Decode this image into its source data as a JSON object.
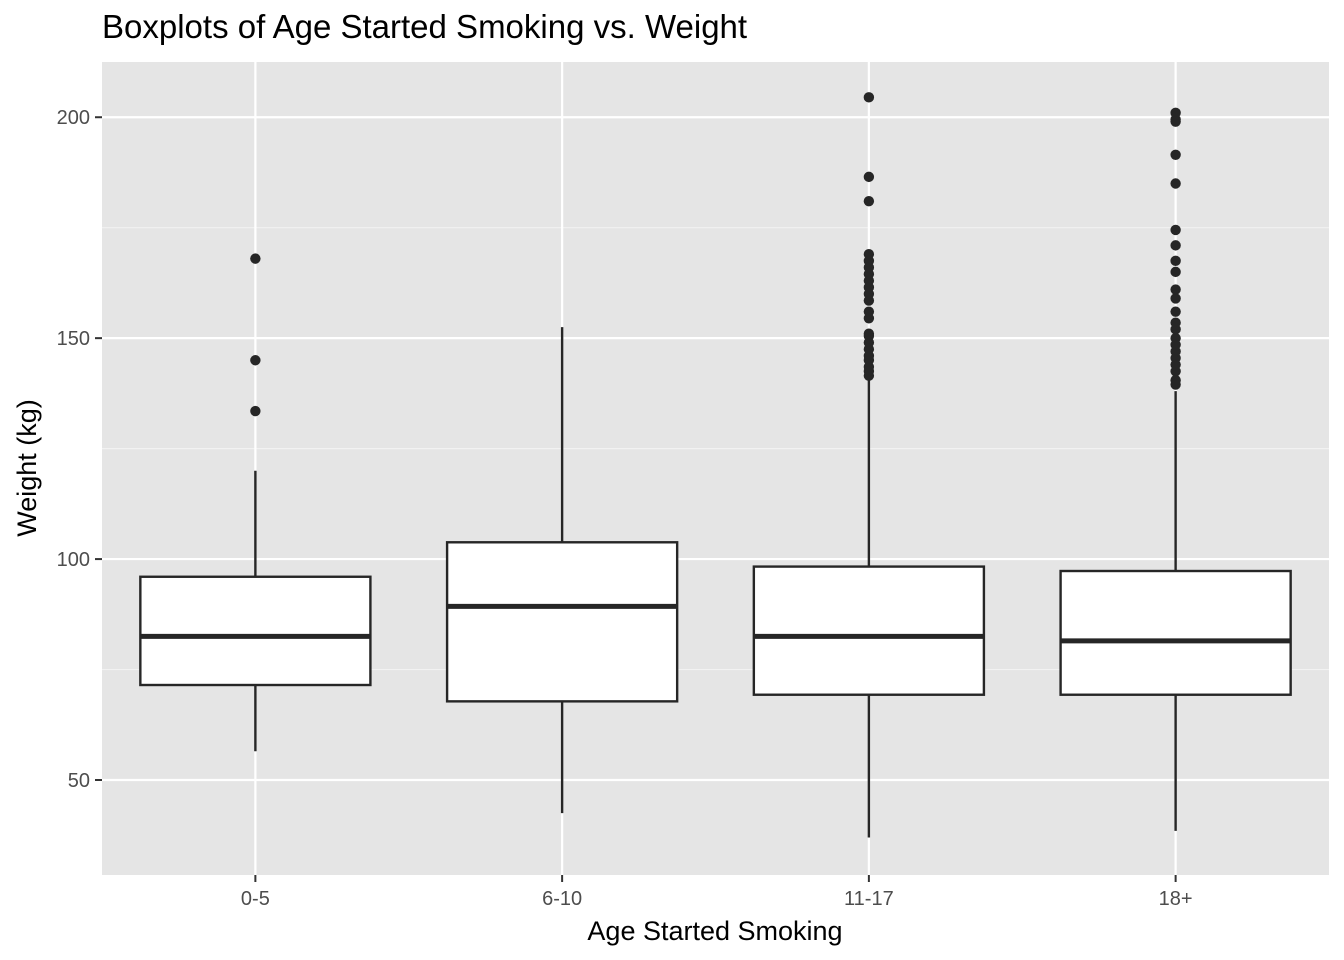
{
  "chart_data": {
    "type": "boxplot",
    "title": "Boxplots of Age Started Smoking vs. Weight",
    "xlabel": "Age Started Smoking",
    "ylabel": "Weight (kg)",
    "ylim": [
      28.5,
      212.5
    ],
    "yticks": [
      50,
      100,
      150,
      200
    ],
    "grid": true,
    "categories": [
      "0-5",
      "6-10",
      "11-17",
      "18+"
    ],
    "boxes": [
      {
        "category": "0-5",
        "whisker_low": 56.5,
        "q1": 71.5,
        "median": 82.5,
        "q3": 96.0,
        "whisker_high": 120.0,
        "outliers": [
          133.5,
          145.0,
          168.0
        ]
      },
      {
        "category": "6-10",
        "whisker_low": 42.5,
        "q1": 67.8,
        "median": 89.3,
        "q3": 103.8,
        "whisker_high": 152.5,
        "outliers": []
      },
      {
        "category": "11-17",
        "whisker_low": 37.0,
        "q1": 69.3,
        "median": 82.5,
        "q3": 98.3,
        "whisker_high": 141.0,
        "outliers": [
          141.5,
          142.5,
          143.5,
          145.0,
          146.0,
          147.5,
          149.0,
          150.5,
          151.0,
          154.5,
          156.0,
          158.5,
          160.0,
          161.5,
          163.0,
          164.5,
          166.0,
          167.5,
          169.0,
          181.0,
          186.5,
          204.5
        ]
      },
      {
        "category": "18+",
        "whisker_low": 38.5,
        "q1": 69.3,
        "median": 81.5,
        "q3": 97.3,
        "whisker_high": 138.0,
        "outliers": [
          139.5,
          140.5,
          142.5,
          144.0,
          145.5,
          147.0,
          148.5,
          150.0,
          152.0,
          153.5,
          156.0,
          159.0,
          161.0,
          165.0,
          167.5,
          171.0,
          174.5,
          185.0,
          191.5,
          199.0,
          199.5,
          201.0
        ]
      }
    ],
    "colors": {
      "panel": "#e5e5e5",
      "grid_major": "#ffffff",
      "grid_minor": "#f2f2f2",
      "box_fill": "#ffffff",
      "stroke": "#262626"
    }
  }
}
